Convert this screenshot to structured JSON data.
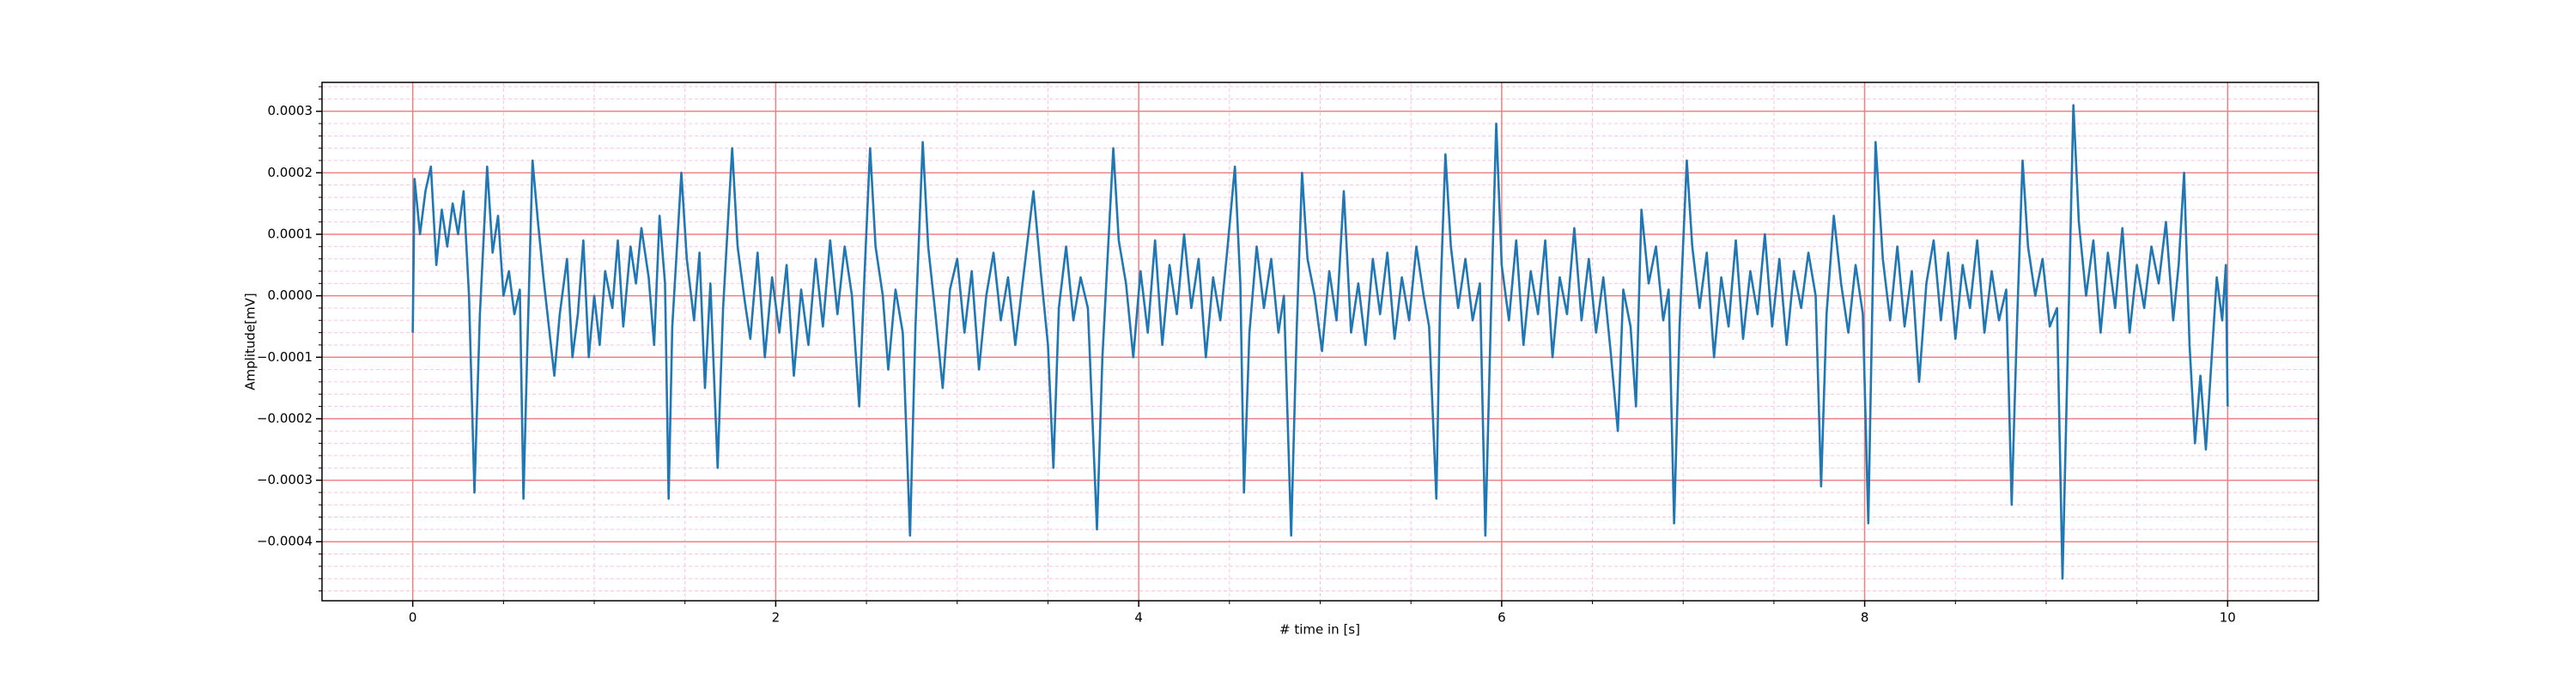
{
  "chart_data": {
    "type": "line",
    "xlabel": "# time in [s]",
    "ylabel": "Amplitude[mV]",
    "color": "#1f77b4",
    "grid": true,
    "minor_grid": true,
    "grid_color": "#f08080",
    "minor_grid_color": "#ffc0e0",
    "xlim": [
      -0.5,
      10.5
    ],
    "xticks": [
      0,
      2,
      4,
      6,
      8,
      10
    ],
    "xminor": [
      0.5,
      1,
      1.5,
      2.5,
      3,
      3.5,
      4.5,
      5,
      5.5,
      6.5,
      7,
      7.5,
      8.5,
      9,
      9.5
    ],
    "ylim": [
      -0.000496,
      0.000347
    ],
    "yticks": [
      {
        "value": -0.0004,
        "label": "−0.0004"
      },
      {
        "value": -0.0003,
        "label": "−0.0003"
      },
      {
        "value": -0.0002,
        "label": "−0.0002"
      },
      {
        "value": -0.0001,
        "label": "−0.0001"
      },
      {
        "value": 0,
        "label": "0.0000"
      },
      0.0001,
      0.0002,
      0.0003
    ],
    "yminor": [
      -0.00048,
      -0.00046,
      -0.00044,
      -0.00042,
      -0.00038,
      -0.00036,
      -0.00034,
      -0.00032,
      -0.00028,
      -0.00026,
      -0.00024,
      -0.00022,
      -0.00018,
      -0.00016,
      -0.00014,
      -0.00012,
      -8e-05,
      -6e-05,
      -4e-05,
      -2e-05,
      2e-05,
      4e-05,
      6e-05,
      8e-05,
      0.00012,
      0.00014,
      0.00016,
      0.00018,
      0.00022,
      0.00024,
      0.00026,
      0.00028,
      0.00032,
      0.00034
    ],
    "x": [
      0.0,
      0.01,
      0.04,
      0.07,
      0.1,
      0.13,
      0.16,
      0.19,
      0.22,
      0.25,
      0.28,
      0.31,
      0.34,
      0.37,
      0.41,
      0.44,
      0.47,
      0.5,
      0.53,
      0.56,
      0.59,
      0.61,
      0.63,
      0.66,
      0.69,
      0.72,
      0.75,
      0.78,
      0.81,
      0.85,
      0.88,
      0.91,
      0.94,
      0.97,
      1.0,
      1.03,
      1.06,
      1.1,
      1.13,
      1.16,
      1.2,
      1.23,
      1.26,
      1.3,
      1.33,
      1.36,
      1.39,
      1.41,
      1.43,
      1.48,
      1.51,
      1.55,
      1.58,
      1.61,
      1.64,
      1.68,
      1.71,
      1.76,
      1.79,
      1.83,
      1.86,
      1.9,
      1.94,
      1.98,
      2.02,
      2.06,
      2.1,
      2.14,
      2.18,
      2.22,
      2.26,
      2.3,
      2.34,
      2.38,
      2.42,
      2.46,
      2.49,
      2.52,
      2.55,
      2.59,
      2.62,
      2.66,
      2.7,
      2.74,
      2.77,
      2.81,
      2.84,
      2.88,
      2.92,
      2.96,
      3.0,
      3.04,
      3.08,
      3.12,
      3.16,
      3.2,
      3.24,
      3.28,
      3.32,
      3.36,
      3.42,
      3.46,
      3.5,
      3.53,
      3.56,
      3.6,
      3.64,
      3.68,
      3.72,
      3.77,
      3.8,
      3.86,
      3.89,
      3.93,
      3.97,
      4.01,
      4.05,
      4.09,
      4.13,
      4.17,
      4.21,
      4.25,
      4.29,
      4.33,
      4.37,
      4.41,
      4.45,
      4.49,
      4.53,
      4.56,
      4.58,
      4.61,
      4.65,
      4.69,
      4.73,
      4.77,
      4.8,
      4.84,
      4.87,
      4.9,
      4.93,
      4.97,
      5.01,
      5.05,
      5.09,
      5.13,
      5.17,
      5.21,
      5.25,
      5.29,
      5.33,
      5.37,
      5.41,
      5.45,
      5.49,
      5.53,
      5.57,
      5.6,
      5.64,
      5.66,
      5.69,
      5.72,
      5.76,
      5.8,
      5.84,
      5.88,
      5.91,
      5.94,
      5.97,
      6.0,
      6.04,
      6.08,
      6.12,
      6.16,
      6.2,
      6.24,
      6.28,
      6.32,
      6.36,
      6.4,
      6.44,
      6.48,
      6.52,
      6.56,
      6.6,
      6.64,
      6.67,
      6.71,
      6.74,
      6.77,
      6.81,
      6.85,
      6.89,
      6.92,
      6.95,
      6.98,
      7.02,
      7.05,
      7.09,
      7.13,
      7.17,
      7.21,
      7.25,
      7.29,
      7.33,
      7.37,
      7.41,
      7.45,
      7.49,
      7.53,
      7.57,
      7.61,
      7.65,
      7.69,
      7.73,
      7.76,
      7.79,
      7.83,
      7.87,
      7.91,
      7.95,
      7.99,
      8.02,
      8.04,
      8.06,
      8.1,
      8.14,
      8.18,
      8.22,
      8.26,
      8.3,
      8.34,
      8.38,
      8.42,
      8.46,
      8.5,
      8.54,
      8.58,
      8.62,
      8.66,
      8.7,
      8.74,
      8.78,
      8.81,
      8.84,
      8.87,
      8.9,
      8.94,
      8.98,
      9.02,
      9.06,
      9.09,
      9.12,
      9.15,
      9.18,
      9.22,
      9.26,
      9.3,
      9.34,
      9.38,
      9.42,
      9.46,
      9.5,
      9.54,
      9.58,
      9.62,
      9.66,
      9.7,
      9.73,
      9.76,
      9.79,
      9.82,
      9.85,
      9.88,
      9.91,
      9.94,
      9.97,
      9.99,
      10.0
    ],
    "values": [
      -6e-05,
      0.00019,
      0.0001,
      0.00017,
      0.00021,
      5e-05,
      0.00014,
      8e-05,
      0.00015,
      0.0001,
      0.00017,
      0.0,
      -0.00032,
      -3e-05,
      0.00021,
      7e-05,
      0.00013,
      0.0,
      4e-05,
      -3e-05,
      1e-05,
      -0.00033,
      -0.0001,
      0.00022,
      0.00012,
      3e-05,
      -5e-05,
      -0.00013,
      -3e-05,
      6e-05,
      -0.0001,
      -3e-05,
      9e-05,
      -0.0001,
      0.0,
      -8e-05,
      4e-05,
      -2e-05,
      9e-05,
      -5e-05,
      8e-05,
      2e-05,
      0.00011,
      3e-05,
      -8e-05,
      0.00013,
      2e-05,
      -0.00033,
      -5e-05,
      0.0002,
      6e-05,
      -4e-05,
      7e-05,
      -0.00015,
      2e-05,
      -0.00028,
      -2e-05,
      0.00024,
      8e-05,
      -1e-05,
      -7e-05,
      7e-05,
      -0.0001,
      3e-05,
      -6e-05,
      5e-05,
      -0.00013,
      1e-05,
      -8e-05,
      6e-05,
      -5e-05,
      9e-05,
      -3e-05,
      8e-05,
      0.0,
      -0.00018,
      4e-05,
      0.00024,
      8e-05,
      0.0,
      -0.00012,
      1e-05,
      -6e-05,
      -0.00039,
      -5e-05,
      0.00025,
      8e-05,
      -3e-05,
      -0.00015,
      1e-05,
      6e-05,
      -6e-05,
      4e-05,
      -0.00012,
      0.0,
      7e-05,
      -4e-05,
      3e-05,
      -8e-05,
      2e-05,
      0.00017,
      4e-05,
      -8e-05,
      -0.00028,
      -2e-05,
      8e-05,
      -4e-05,
      3e-05,
      -2e-05,
      -0.00038,
      -0.0001,
      0.00024,
      9e-05,
      2e-05,
      -0.0001,
      4e-05,
      -6e-05,
      9e-05,
      -8e-05,
      5e-05,
      -3e-05,
      0.0001,
      -2e-05,
      6e-05,
      -0.0001,
      3e-05,
      -4e-05,
      8e-05,
      0.00021,
      2e-05,
      -0.00032,
      -6e-05,
      8e-05,
      -2e-05,
      6e-05,
      -6e-05,
      0.0,
      -0.00039,
      -6e-05,
      0.0002,
      6e-05,
      0.0,
      -9e-05,
      4e-05,
      -4e-05,
      0.00017,
      -6e-05,
      2e-05,
      -8e-05,
      6e-05,
      -3e-05,
      7e-05,
      -7e-05,
      3e-05,
      -4e-05,
      8e-05,
      0.0,
      -5e-05,
      -0.00033,
      -2e-05,
      0.00023,
      8e-05,
      -2e-05,
      6e-05,
      -4e-05,
      2e-05,
      -0.00039,
      -4e-05,
      0.00028,
      5e-05,
      -4e-05,
      9e-05,
      -8e-05,
      4e-05,
      -3e-05,
      9e-05,
      -0.0001,
      3e-05,
      -3e-05,
      0.00011,
      -4e-05,
      6e-05,
      -6e-05,
      3e-05,
      -9e-05,
      -0.00022,
      1e-05,
      -5e-05,
      -0.00018,
      0.00014,
      2e-05,
      8e-05,
      -4e-05,
      1e-05,
      -0.00037,
      -5e-05,
      0.00022,
      8e-05,
      -2e-05,
      7e-05,
      -0.0001,
      3e-05,
      -5e-05,
      9e-05,
      -7e-05,
      4e-05,
      -3e-05,
      0.0001,
      -5e-05,
      6e-05,
      -8e-05,
      4e-05,
      -2e-05,
      7e-05,
      0.0,
      -0.00031,
      -3e-05,
      0.00013,
      2e-05,
      -6e-05,
      5e-05,
      -3e-05,
      -0.00037,
      -5e-05,
      0.00025,
      6e-05,
      -4e-05,
      8e-05,
      -5e-05,
      4e-05,
      -0.00014,
      2e-05,
      9e-05,
      -4e-05,
      7e-05,
      -7e-05,
      5e-05,
      -2e-05,
      9e-05,
      -6e-05,
      4e-05,
      -4e-05,
      1e-05,
      -0.00034,
      -4e-05,
      0.00022,
      8e-05,
      0.0,
      6e-05,
      -5e-05,
      -2e-05,
      -0.00046,
      -8e-05,
      0.00031,
      0.00012,
      0.0,
      9e-05,
      -6e-05,
      7e-05,
      -2e-05,
      0.00011,
      -6e-05,
      5e-05,
      -2e-05,
      8e-05,
      2e-05,
      0.00012,
      -4e-05,
      5e-05,
      0.0002,
      -8e-05,
      -0.00024,
      -0.00013,
      -0.00025,
      -0.00011,
      3e-05,
      -4e-05,
      5e-05,
      -0.00018
    ]
  }
}
